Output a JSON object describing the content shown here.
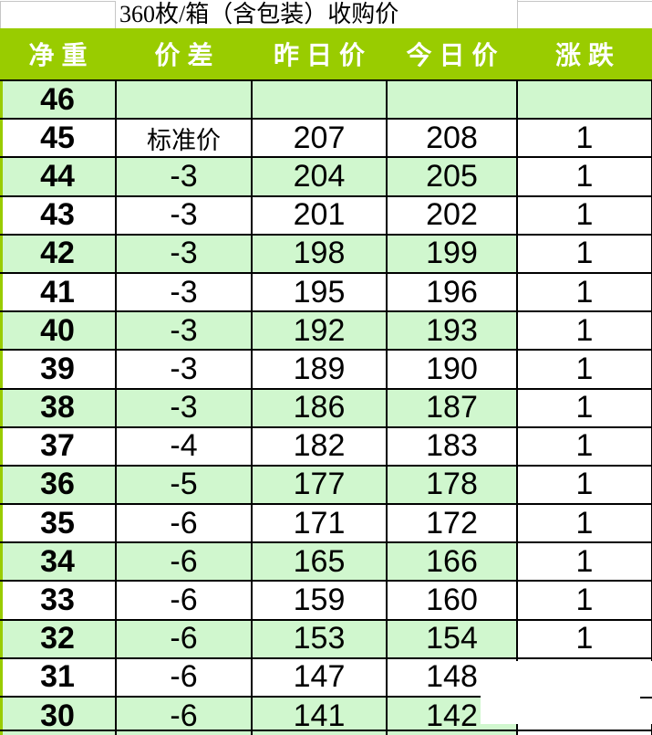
{
  "title": "360枚/箱（含包装）收购价",
  "columns": [
    {
      "key": "net_weight",
      "label": "净重"
    },
    {
      "key": "diff",
      "label": "价差"
    },
    {
      "key": "yesterday",
      "label": "昨日价"
    },
    {
      "key": "today",
      "label": "今日价"
    },
    {
      "key": "change",
      "label": "涨跌"
    }
  ],
  "rows": [
    {
      "net_weight": "46",
      "diff": "",
      "yesterday": "",
      "today": "",
      "change": "",
      "highlight": true
    },
    {
      "net_weight": "45",
      "diff": "标准价",
      "yesterday": "207",
      "today": "208",
      "change": "1",
      "highlight": false
    },
    {
      "net_weight": "44",
      "diff": "-3",
      "yesterday": "204",
      "today": "205",
      "change": "1",
      "highlight": true
    },
    {
      "net_weight": "43",
      "diff": "-3",
      "yesterday": "201",
      "today": "202",
      "change": "1",
      "highlight": false
    },
    {
      "net_weight": "42",
      "diff": "-3",
      "yesterday": "198",
      "today": "199",
      "change": "1",
      "highlight": true
    },
    {
      "net_weight": "41",
      "diff": "-3",
      "yesterday": "195",
      "today": "196",
      "change": "1",
      "highlight": false
    },
    {
      "net_weight": "40",
      "diff": "-3",
      "yesterday": "192",
      "today": "193",
      "change": "1",
      "highlight": true
    },
    {
      "net_weight": "39",
      "diff": "-3",
      "yesterday": "189",
      "today": "190",
      "change": "1",
      "highlight": false
    },
    {
      "net_weight": "38",
      "diff": "-3",
      "yesterday": "186",
      "today": "187",
      "change": "1",
      "highlight": true
    },
    {
      "net_weight": "37",
      "diff": "-4",
      "yesterday": "182",
      "today": "183",
      "change": "1",
      "highlight": false
    },
    {
      "net_weight": "36",
      "diff": "-5",
      "yesterday": "177",
      "today": "178",
      "change": "1",
      "highlight": true
    },
    {
      "net_weight": "35",
      "diff": "-6",
      "yesterday": "171",
      "today": "172",
      "change": "1",
      "highlight": false
    },
    {
      "net_weight": "34",
      "diff": "-6",
      "yesterday": "165",
      "today": "166",
      "change": "1",
      "highlight": true
    },
    {
      "net_weight": "33",
      "diff": "-6",
      "yesterday": "159",
      "today": "160",
      "change": "1",
      "highlight": false
    },
    {
      "net_weight": "32",
      "diff": "-6",
      "yesterday": "153",
      "today": "154",
      "change": "1",
      "highlight": true
    },
    {
      "net_weight": "31",
      "diff": "-6",
      "yesterday": "147",
      "today": "148",
      "change": "",
      "highlight": false
    },
    {
      "net_weight": "30",
      "diff": "-6",
      "yesterday": "141",
      "today": "142",
      "change": "",
      "highlight": true
    }
  ],
  "colors": {
    "header_green": "#99CC00",
    "row_green": "#D0F7CE",
    "border_black": "#000000",
    "gridline_gray": "#C6C6C6",
    "header_text": "#FFFFFF"
  }
}
